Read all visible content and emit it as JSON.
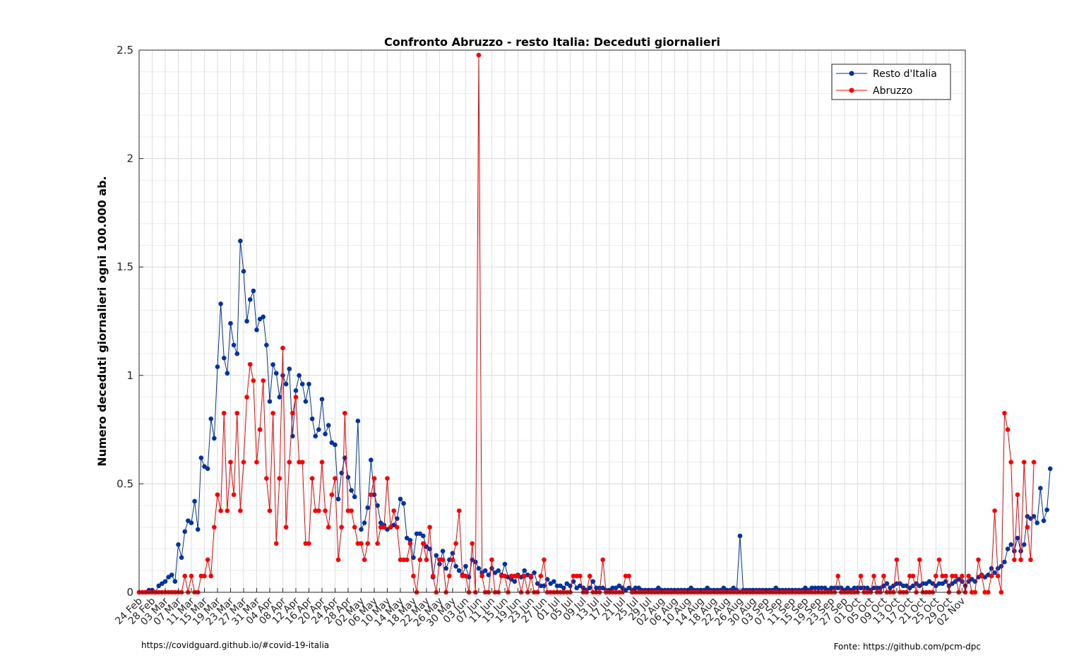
{
  "chart_data": {
    "type": "line",
    "title": "Confronto Abruzzo - resto Italia: Deceduti giornalieri",
    "xlabel": "",
    "ylabel": "Numero deceduti giornalieri ogni 100.000 ab.",
    "ylim": [
      0,
      2.5
    ],
    "yticks": [
      "0",
      "0.5",
      "1",
      "1.5",
      "2",
      "2.5"
    ],
    "ytick_values": [
      0,
      0.5,
      1,
      1.5,
      2,
      2.5
    ],
    "grid": true,
    "legend_position": "top-right",
    "x_start_date": "2020-02-24",
    "x_end_date": "2020-11-03",
    "x_tick_dates": [
      "2020-02-24",
      "2020-02-28",
      "2020-03-03",
      "2020-03-07",
      "2020-03-11",
      "2020-03-15",
      "2020-03-19",
      "2020-03-23",
      "2020-03-27",
      "2020-03-31",
      "2020-04-04",
      "2020-04-08",
      "2020-04-12",
      "2020-04-16",
      "2020-04-20",
      "2020-04-24",
      "2020-04-28",
      "2020-05-02",
      "2020-05-06",
      "2020-05-10",
      "2020-05-14",
      "2020-05-18",
      "2020-05-22",
      "2020-05-26",
      "2020-05-30",
      "2020-06-03",
      "2020-06-07",
      "2020-06-11",
      "2020-06-15",
      "2020-06-19",
      "2020-06-23",
      "2020-06-27",
      "2020-07-01",
      "2020-07-05",
      "2020-07-09",
      "2020-07-13",
      "2020-07-17",
      "2020-07-21",
      "2020-07-25",
      "2020-07-29",
      "2020-08-02",
      "2020-08-06",
      "2020-08-10",
      "2020-08-14",
      "2020-08-18",
      "2020-08-22",
      "2020-08-26",
      "2020-08-30",
      "2020-09-03",
      "2020-09-07",
      "2020-09-11",
      "2020-09-15",
      "2020-09-19",
      "2020-09-23",
      "2020-09-27",
      "2020-10-01",
      "2020-10-05",
      "2020-10-09",
      "2020-10-13",
      "2020-10-17",
      "2020-10-21",
      "2020-10-25",
      "2020-10-29",
      "2020-11-02"
    ],
    "x_tick_labels": [
      "24 Feb",
      "28 Feb",
      "03 Mar",
      "07 Mar",
      "11 Mar",
      "15 Mar",
      "19 Mar",
      "23 Mar",
      "27 Mar",
      "31 Mar",
      "04 Apr",
      "08 Apr",
      "12 Apr",
      "16 Apr",
      "20 Apr",
      "24 Apr",
      "28 Apr",
      "02 May",
      "06 May",
      "10 May",
      "14 May",
      "18 May",
      "22 May",
      "26 May",
      "30 May",
      "03 Jun",
      "07 Jun",
      "11 Jun",
      "15 Jun",
      "19 Jun",
      "23 Jun",
      "27 Jun",
      "01 Jul",
      "05 Jul",
      "09 Jul",
      "13 Jul",
      "17 Jul",
      "21 Jul",
      "25 Jul",
      "29 Jul",
      "02 Aug",
      "06 Aug",
      "10 Aug",
      "14 Aug",
      "18 Aug",
      "22 Aug",
      "26 Aug",
      "30 Aug",
      "03 Sep",
      "07 Sep",
      "11 Sep",
      "15 Sep",
      "19 Sep",
      "23 Sep",
      "27 Sep",
      "01 Oct",
      "05 Oct",
      "09 Oct",
      "13 Oct",
      "17 Oct",
      "21 Oct",
      "25 Oct",
      "29 Oct",
      "02 Nov"
    ],
    "series": [
      {
        "name": "Resto d'Italia",
        "color": "#0033a0",
        "values": [
          0.0,
          0.0,
          0.0,
          0.01,
          0.01,
          0.0,
          0.03,
          0.04,
          0.05,
          0.07,
          0.08,
          0.05,
          0.22,
          0.16,
          0.28,
          0.33,
          0.32,
          0.42,
          0.29,
          0.62,
          0.58,
          0.57,
          0.8,
          0.71,
          1.04,
          1.33,
          1.08,
          1.01,
          1.24,
          1.14,
          1.1,
          1.62,
          1.48,
          1.25,
          1.35,
          1.39,
          1.21,
          1.26,
          1.27,
          1.14,
          0.88,
          1.05,
          1.01,
          0.9,
          1.0,
          0.96,
          1.03,
          0.72,
          0.93,
          1.0,
          0.96,
          0.88,
          0.96,
          0.8,
          0.72,
          0.75,
          0.89,
          0.73,
          0.77,
          0.69,
          0.68,
          0.43,
          0.55,
          0.62,
          0.53,
          0.47,
          0.44,
          0.79,
          0.29,
          0.32,
          0.39,
          0.61,
          0.45,
          0.4,
          0.32,
          0.31,
          0.29,
          0.3,
          0.31,
          0.34,
          0.43,
          0.41,
          0.25,
          0.24,
          0.16,
          0.27,
          0.27,
          0.26,
          0.21,
          0.2,
          0.07,
          0.17,
          0.13,
          0.19,
          0.11,
          0.15,
          0.18,
          0.12,
          0.1,
          0.08,
          0.12,
          0.07,
          0.15,
          0.14,
          0.11,
          0.09,
          0.1,
          0.08,
          0.11,
          0.09,
          0.1,
          0.08,
          0.13,
          0.07,
          0.06,
          0.05,
          0.08,
          0.07,
          0.1,
          0.08,
          0.07,
          0.09,
          0.04,
          0.03,
          0.03,
          0.06,
          0.04,
          0.05,
          0.03,
          0.03,
          0.02,
          0.04,
          0.03,
          0.05,
          0.02,
          0.03,
          0.02,
          0.01,
          0.02,
          0.05,
          0.02,
          0.02,
          0.02,
          0.01,
          0.01,
          0.02,
          0.02,
          0.03,
          0.02,
          0.01,
          0.02,
          0.01,
          0.02,
          0.02,
          0.01,
          0.01,
          0.01,
          0.01,
          0.01,
          0.02,
          0.01,
          0.01,
          0.01,
          0.01,
          0.01,
          0.01,
          0.01,
          0.01,
          0.01,
          0.02,
          0.01,
          0.01,
          0.01,
          0.01,
          0.02,
          0.01,
          0.01,
          0.01,
          0.01,
          0.02,
          0.01,
          0.01,
          0.02,
          0.01,
          0.26,
          0.01,
          0.01,
          0.01,
          0.01,
          0.01,
          0.01,
          0.01,
          0.01,
          0.01,
          0.01,
          0.02,
          0.01,
          0.01,
          0.01,
          0.01,
          0.01,
          0.01,
          0.01,
          0.01,
          0.02,
          0.01,
          0.02,
          0.02,
          0.02,
          0.02,
          0.02,
          0.01,
          0.02,
          0.02,
          0.02,
          0.02,
          0.01,
          0.02,
          0.01,
          0.02,
          0.02,
          0.02,
          0.02,
          0.02,
          0.01,
          0.02,
          0.02,
          0.02,
          0.03,
          0.04,
          0.02,
          0.03,
          0.04,
          0.04,
          0.03,
          0.03,
          0.02,
          0.03,
          0.04,
          0.03,
          0.04,
          0.04,
          0.05,
          0.04,
          0.03,
          0.04,
          0.04,
          0.05,
          0.03,
          0.04,
          0.05,
          0.06,
          0.05,
          0.03,
          0.05,
          0.06,
          0.05,
          0.07,
          0.08,
          0.07,
          0.08,
          0.11,
          0.09,
          0.11,
          0.12,
          0.14,
          0.2,
          0.22,
          0.19,
          0.25,
          0.19,
          0.22,
          0.35,
          0.34,
          0.35,
          0.32,
          0.48,
          0.33,
          0.38,
          0.57
        ]
      },
      {
        "name": "Abruzzo",
        "color": "#ff0000",
        "values": [
          0,
          0,
          0,
          0,
          0,
          0,
          0,
          0,
          0,
          0,
          0,
          0,
          0,
          0,
          0.075,
          0,
          0.075,
          0,
          0,
          0.075,
          0.075,
          0.15,
          0.075,
          0.3,
          0.45,
          0.376,
          0.826,
          0.376,
          0.6,
          0.45,
          0.826,
          0.376,
          0.6,
          0.9,
          1.051,
          0.976,
          0.6,
          0.75,
          0.976,
          0.525,
          0.376,
          0.826,
          0.225,
          0.525,
          1.126,
          0.3,
          0.6,
          0.826,
          0.9,
          0.6,
          0.6,
          0.225,
          0.225,
          0.525,
          0.376,
          0.376,
          0.6,
          0.376,
          0.3,
          0.45,
          0.525,
          0.15,
          0.3,
          0.826,
          0.376,
          0.376,
          0.3,
          0.225,
          0.225,
          0.15,
          0.225,
          0.45,
          0.525,
          0.225,
          0.3,
          0.3,
          0.525,
          0.3,
          0.376,
          0.3,
          0.15,
          0.15,
          0.15,
          0.225,
          0.075,
          0,
          0.15,
          0.225,
          0.15,
          0.3,
          0.075,
          0,
          0.15,
          0.15,
          0,
          0.075,
          0.15,
          0.225,
          0.376,
          0.075,
          0.075,
          0,
          0.225,
          0,
          2.477,
          0.075,
          0,
          0,
          0.15,
          0,
          0,
          0.075,
          0.075,
          0,
          0.075,
          0.075,
          0.075,
          0,
          0.075,
          0,
          0.075,
          0,
          0,
          0.075,
          0.15,
          0,
          0,
          0,
          0,
          0,
          0,
          0,
          0,
          0.075,
          0.075,
          0.075,
          0,
          0,
          0.075,
          0,
          0,
          0,
          0.15,
          0,
          0,
          0,
          0,
          0,
          0,
          0.075,
          0.075,
          0,
          0,
          0,
          0,
          0,
          0,
          0,
          0,
          0,
          0,
          0,
          0,
          0,
          0,
          0,
          0,
          0,
          0,
          0,
          0,
          0,
          0,
          0,
          0,
          0,
          0,
          0,
          0,
          0,
          0,
          0,
          0,
          0,
          0,
          0,
          0,
          0,
          0,
          0,
          0,
          0,
          0,
          0,
          0,
          0,
          0,
          0,
          0,
          0,
          0,
          0,
          0,
          0,
          0,
          0,
          0,
          0,
          0,
          0,
          0,
          0,
          0,
          0,
          0.075,
          0,
          0,
          0,
          0,
          0,
          0,
          0.075,
          0,
          0,
          0,
          0.075,
          0,
          0,
          0.075,
          0,
          0,
          0,
          0.15,
          0,
          0,
          0,
          0.075,
          0.075,
          0,
          0.15,
          0,
          0,
          0,
          0,
          0.075,
          0.15,
          0.075,
          0.075,
          0,
          0.075,
          0.075,
          0,
          0.075,
          0,
          0.075,
          0,
          0,
          0.15,
          0.075,
          0,
          0,
          0.075,
          0.376,
          0.075,
          0,
          0.826,
          0.75,
          0.6,
          0.15,
          0.45,
          0.15,
          0.6,
          0.3,
          0.15,
          0.6
        ]
      }
    ]
  },
  "footer": {
    "left": "https://covidguard.github.io/#covid-19-italia",
    "right": "Fonte: https://github.com/pcm-dpc"
  }
}
